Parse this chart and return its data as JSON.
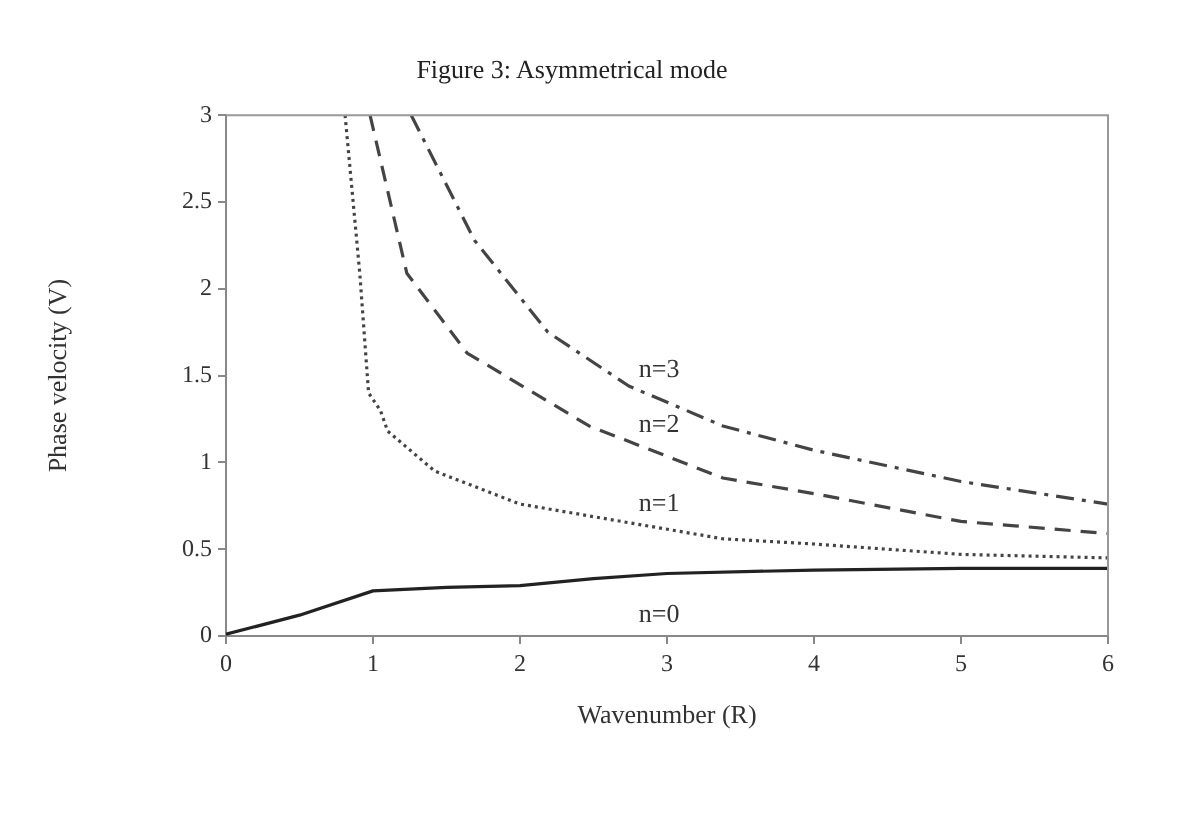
{
  "chart_data": {
    "type": "line",
    "title": "Figure 3: Asymmetrical mode",
    "xlabel": "Wavenumber (R)",
    "ylabel": "Phase velocity (V)",
    "xlim": [
      0,
      6
    ],
    "xticks": [
      0,
      1,
      2,
      3,
      4,
      5,
      6
    ],
    "ylim": [
      0,
      3
    ],
    "yticks": [
      0,
      0.5,
      1,
      1.5,
      2,
      2.5,
      3
    ],
    "grid": false,
    "legend": false,
    "marker": "none",
    "series": [
      {
        "name": "n=0",
        "color": "#222222",
        "line_style": "solid",
        "x": [
          0,
          0.5,
          1,
          1.5,
          2,
          2.5,
          3,
          4,
          5,
          6
        ],
        "values": [
          0.01,
          0.12,
          0.26,
          0.28,
          0.29,
          0.33,
          0.36,
          0.38,
          0.39,
          0.39
        ]
      },
      {
        "name": "n=1",
        "color": "#444444",
        "line_style": "dotted",
        "x": [
          0.81,
          0.91,
          0.97,
          1.05,
          1.1,
          1.42,
          2,
          3.38,
          4,
          5,
          6
        ],
        "values": [
          3,
          2.09,
          1.4,
          1.3,
          1.18,
          0.95,
          0.76,
          0.56,
          0.53,
          0.47,
          0.45
        ]
      },
      {
        "name": "n=2",
        "color": "#444444",
        "line_style": "dashed",
        "x": [
          0.98,
          1.23,
          1.64,
          2.47,
          3.38,
          4,
          5,
          6
        ],
        "values": [
          3,
          2.09,
          1.63,
          1.21,
          0.91,
          0.82,
          0.66,
          0.59
        ]
      },
      {
        "name": "n=3",
        "color": "#444444",
        "line_style": "dashdot",
        "x": [
          1.26,
          1.69,
          2.19,
          2.74,
          3.38,
          4,
          5,
          6
        ],
        "values": [
          3,
          2.28,
          1.75,
          1.44,
          1.21,
          1.07,
          0.89,
          0.76
        ]
      }
    ]
  }
}
